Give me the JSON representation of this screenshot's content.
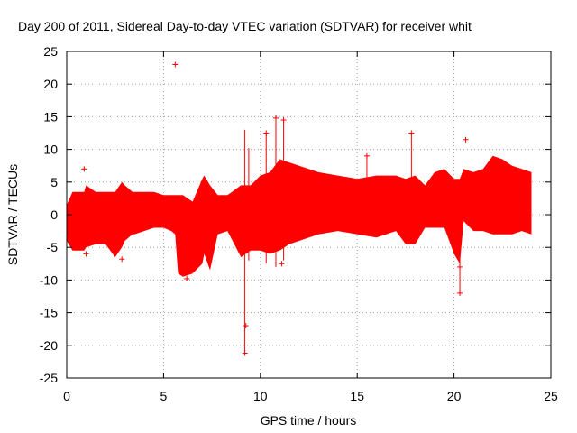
{
  "chart_data": {
    "type": "scatter",
    "title": "Day 200 of 2011, Sidereal Day-to-day VTEC variation (SDTVAR) for receiver whit",
    "xlabel": "GPS time / hours",
    "ylabel": "SDTVAR / TECUs",
    "xlim": [
      0,
      25
    ],
    "ylim": [
      -25,
      25
    ],
    "xticks": [
      "0",
      "5",
      "10",
      "15",
      "20",
      "25"
    ],
    "yticks": [
      "25",
      "20",
      "15",
      "10",
      "5",
      "0",
      "-5",
      "-10",
      "-15",
      "-20",
      "-25"
    ],
    "grid": true,
    "series_color": "#ff0000",
    "marker": "cross",
    "series": [
      {
        "name": "SDTVAR",
        "envelope": {
          "x": [
            0.0,
            0.3,
            0.9,
            1.0,
            1.5,
            2.0,
            2.5,
            2.85,
            3.0,
            3.4,
            3.5,
            4.0,
            4.5,
            5.0,
            5.4,
            5.6,
            5.75,
            6.0,
            6.5,
            7.0,
            7.1,
            7.4,
            7.8,
            8.3,
            9.0,
            9.5,
            10.0,
            10.5,
            11.0,
            11.5,
            12.0,
            13.0,
            14.0,
            15.0,
            16.0,
            17.0,
            17.5,
            18.0,
            18.5,
            19.0,
            19.5,
            20.0,
            20.3,
            20.5,
            21.0,
            21.5,
            22.0,
            22.5,
            23.0,
            23.5,
            24.0
          ],
          "upper": [
            1.5,
            3.5,
            3.5,
            4.5,
            3.5,
            3.5,
            3.5,
            5.0,
            4.5,
            3.5,
            3.5,
            3.5,
            3.5,
            3.0,
            3.0,
            3.0,
            3.0,
            3.0,
            2.0,
            5.5,
            6.0,
            4.5,
            3.0,
            3.0,
            4.5,
            4.5,
            6.0,
            6.5,
            8.5,
            8.0,
            7.5,
            6.5,
            6.0,
            5.5,
            6.0,
            6.0,
            5.5,
            6.0,
            4.5,
            6.5,
            7.0,
            5.5,
            5.5,
            7.0,
            6.5,
            7.0,
            9.0,
            8.5,
            7.5,
            7.0,
            6.5
          ],
          "lower": [
            -4.0,
            -5.5,
            -5.5,
            -5.0,
            -4.5,
            -4.5,
            -6.5,
            -5.0,
            -4.0,
            -3.0,
            -3.0,
            -2.5,
            -2.0,
            -2.0,
            -2.5,
            -3.0,
            -9.0,
            -9.5,
            -9.0,
            -7.5,
            -6.0,
            -8.5,
            -3.0,
            -2.5,
            -6.5,
            -5.5,
            -5.5,
            -6.0,
            -5.5,
            -4.5,
            -4.0,
            -3.0,
            -2.5,
            -3.0,
            -3.5,
            -2.5,
            -4.5,
            -4.5,
            -2.0,
            -2.0,
            -2.0,
            -6.0,
            -7.5,
            -1.0,
            -2.5,
            -2.5,
            -3.0,
            -3.0,
            -3.0,
            -2.5,
            -3.0
          ]
        },
        "spikes": [
          {
            "x": 9.2,
            "low": -21.2,
            "high": 13.0
          },
          {
            "x": 9.4,
            "low": -7.0,
            "high": 10.2
          },
          {
            "x": 10.3,
            "low": -7.5,
            "high": 12.5
          },
          {
            "x": 10.8,
            "low": -8.0,
            "high": 14.8
          },
          {
            "x": 11.2,
            "low": -7.0,
            "high": 14.5
          },
          {
            "x": 15.5,
            "low": -2.0,
            "high": 9.0
          },
          {
            "x": 17.8,
            "low": -4.0,
            "high": 12.5
          },
          {
            "x": 20.3,
            "low": -12.0,
            "high": 5.0
          }
        ],
        "points": [
          {
            "x": 0.9,
            "y": 7.0
          },
          {
            "x": 5.6,
            "y": 23.0
          },
          {
            "x": 9.2,
            "y": -21.2
          },
          {
            "x": 9.25,
            "y": -17.0
          },
          {
            "x": 10.3,
            "y": 12.5
          },
          {
            "x": 10.8,
            "y": 14.8
          },
          {
            "x": 11.2,
            "y": 14.5
          },
          {
            "x": 15.5,
            "y": 9.0
          },
          {
            "x": 17.8,
            "y": 12.5
          },
          {
            "x": 20.3,
            "y": -12.0
          },
          {
            "x": 20.3,
            "y": -8.0
          },
          {
            "x": 20.6,
            "y": 11.5
          },
          {
            "x": 2.85,
            "y": -6.8
          },
          {
            "x": 1.0,
            "y": -6.0
          },
          {
            "x": 6.2,
            "y": -9.8
          },
          {
            "x": 11.1,
            "y": -7.5
          }
        ]
      }
    ]
  }
}
